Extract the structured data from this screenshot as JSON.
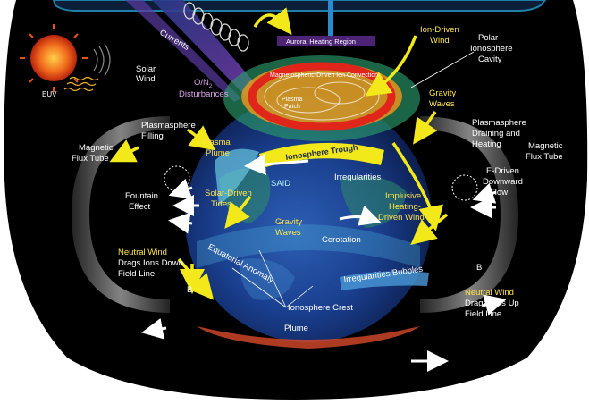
{
  "labels": {
    "currents": "Currents",
    "solar_wind_1": "Solar",
    "solar_wind_2": "Wind",
    "euv": "EUV",
    "o_n2_1": "O/N",
    "o_n2_sub": "2",
    "o_n2_2": "Disturbances",
    "auroral_heating": "Auroral Heating Region",
    "mag_driven_ion": "Magnetospheric-Driven Ion Convection",
    "plasma_patch_1": "Plasma",
    "plasma_patch_2": "Patch",
    "ion_driven_wind_1": "Ion-Driven",
    "ion_driven_wind_2": "Wind",
    "polar_cavity_1": "Polar",
    "polar_cavity_2": "Ionosphere",
    "polar_cavity_3": "Cavity",
    "gravity_waves_top_1": "Gravity",
    "gravity_waves_top_2": "Waves",
    "plasmasphere_filling_1": "Plasmasphere",
    "plasmasphere_filling_2": "Filling",
    "plasmasphere_draining_1": "Plasmasphere",
    "plasmasphere_draining_2": "Draining and",
    "plasmasphere_draining_3": "Heating",
    "magnetic_flux_left_1": "Magnetic",
    "magnetic_flux_left_2": "Flux Tube",
    "magnetic_flux_right_1": "Magnetic",
    "magnetic_flux_right_2": "Flux Tube",
    "plasma_plume_1": "Plasma",
    "plasma_plume_2": "Plume",
    "ionosphere_trough": "Ionosphere Trough",
    "said": "SAID",
    "irregularities": "Irregularities",
    "e_driven_1": "E-Driven",
    "e_driven_2": "Downward",
    "e_driven_3": "Flow",
    "fountain_1": "Fountain",
    "fountain_2": "Effect",
    "solar_driven_tides_1": "Solar-Driven",
    "solar_driven_tides_2": "Tides",
    "implusive_1": "Implusive",
    "implusive_2": "Heating-",
    "implusive_3": "Driven Wind",
    "gravity_waves_mid_1": "Gravity",
    "gravity_waves_mid_2": "Waves",
    "corotation": "Corotation",
    "neutral_wind_left_1": "Neutral Wind",
    "neutral_wind_left_2": "Drags Ions Down",
    "neutral_wind_left_3": "Field Line",
    "b_left": "B",
    "equatorial_anomaly": "Equatorial Anomaly",
    "irregularities_bubbles": "Irregularities/Bubbles",
    "b_right": "B",
    "neutral_wind_right_1": "Neutral Wind",
    "neutral_wind_right_2": "Drags Ions Up",
    "neutral_wind_right_3": "Field Line",
    "ionosphere_crest": "Ionosphere Crest",
    "plume": "Plume"
  },
  "colors": {
    "background": "#ffffff",
    "frame": "#000000",
    "frame_border": "#1e7fa8",
    "label_white": "#ffffff",
    "label_yellow": "#ffe54a",
    "label_purple": "#d9a3e8",
    "arrow_yellow": "#f2e81a",
    "arrow_white": "#ffffff",
    "sun": "#e8501a",
    "auroral_ring": "#e0251b",
    "ocean": "#1a3f8f"
  },
  "icons": {
    "sun": "sun-icon",
    "coil": "spring-coil-icon",
    "flux_tube": "magnetic-flux-tube-icon"
  }
}
